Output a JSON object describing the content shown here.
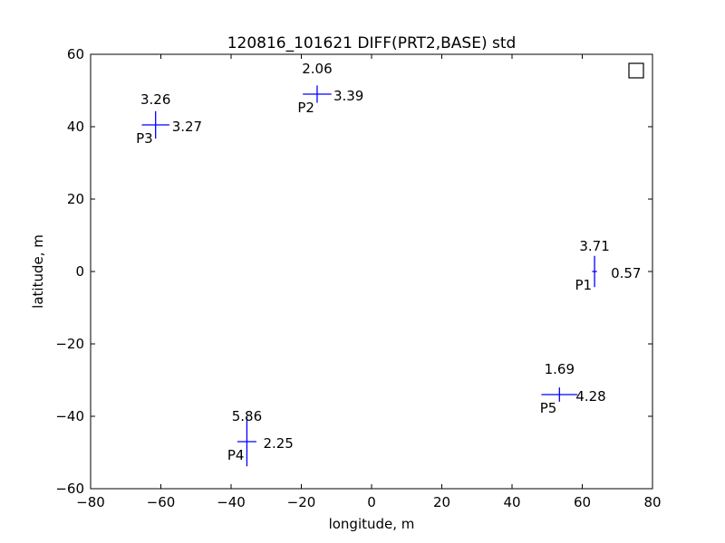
{
  "chart_data": {
    "type": "scatter",
    "title": "120816_101621 DIFF(PRT2,BASE) std",
    "xlabel": "longitude, m",
    "ylabel": "latitude, m",
    "xlim": [
      -80,
      80
    ],
    "ylim": [
      -60,
      60
    ],
    "xticks": [
      "−80",
      "−60",
      "−40",
      "−20",
      "0",
      "20",
      "40",
      "60",
      "80"
    ],
    "yticks": [
      "−60",
      "−40",
      "−20",
      "0",
      "20",
      "40",
      "60"
    ],
    "xtick_values": [
      -80,
      -60,
      -40,
      -20,
      0,
      20,
      40,
      60,
      80
    ],
    "ytick_values": [
      -60,
      -40,
      -20,
      0,
      20,
      40,
      60
    ],
    "grid": false,
    "legend": "top-right (empty marker box)",
    "marker_color": "#0000ff",
    "points": [
      {
        "name": "P1",
        "x": 63.5,
        "y": 0,
        "std_x": "0.57",
        "std_y": "3.71",
        "sx": 0.57,
        "sy": 3.71
      },
      {
        "name": "P2",
        "x": -15.5,
        "y": 49,
        "std_x": "3.39",
        "std_y": "2.06",
        "sx": 3.39,
        "sy": 2.06
      },
      {
        "name": "P3",
        "x": -61.5,
        "y": 40.5,
        "std_x": "3.27",
        "std_y": "3.26",
        "sx": 3.27,
        "sy": 3.26
      },
      {
        "name": "P4",
        "x": -35.5,
        "y": -47,
        "std_x": "2.25",
        "std_y": "5.86",
        "sx": 2.25,
        "sy": 5.86
      },
      {
        "name": "P5",
        "x": 53.5,
        "y": -34,
        "std_x": "4.28",
        "std_y": "1.69",
        "sx": 4.28,
        "sy": 1.69
      }
    ]
  }
}
